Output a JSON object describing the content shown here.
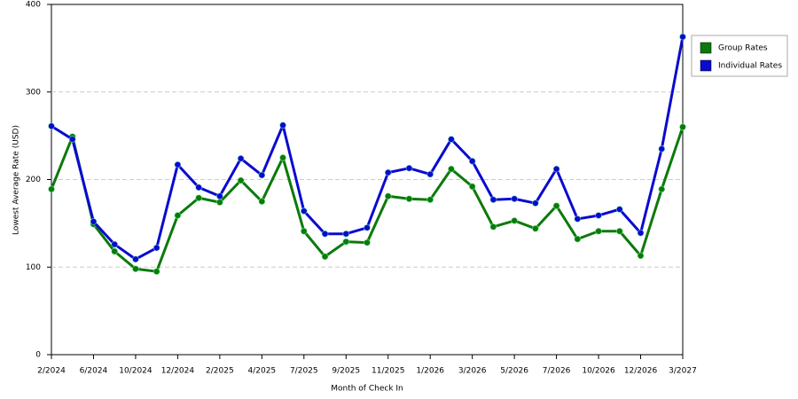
{
  "chart_data": {
    "type": "line",
    "x_label": "Month of Check In",
    "y_label": "Lowest Average Rate (USD)",
    "categories": [
      "2/2024",
      null,
      "6/2024",
      null,
      "10/2024",
      null,
      "12/2024",
      null,
      "2/2025",
      null,
      "4/2025",
      null,
      "7/2025",
      null,
      "9/2025",
      null,
      "11/2025",
      null,
      "1/2026",
      null,
      "3/2026",
      null,
      "5/2026",
      null,
      "7/2026",
      null,
      "10/2026",
      null,
      "12/2026",
      null,
      "3/2027"
    ],
    "series": [
      {
        "name": "Group Rates",
        "color": "#0b7a0b",
        "values": [
          189,
          249,
          149,
          118,
          98,
          95,
          159,
          179,
          174,
          199,
          175,
          225,
          141,
          112,
          129,
          128,
          181,
          178,
          177,
          212,
          192,
          146,
          153,
          144,
          170,
          132,
          141,
          141,
          113,
          189,
          260
        ]
      },
      {
        "name": "Individual Rates",
        "color": "#0a0ad0",
        "values": [
          261,
          246,
          152,
          126,
          109,
          122,
          217,
          191,
          181,
          224,
          205,
          262,
          164,
          138,
          138,
          145,
          208,
          213,
          206,
          246,
          221,
          177,
          178,
          173,
          212,
          155,
          159,
          166,
          139,
          235,
          363
        ]
      }
    ],
    "ylim": [
      0,
      400
    ],
    "yticks": [
      0,
      100,
      200,
      300,
      400
    ],
    "grid": true
  }
}
